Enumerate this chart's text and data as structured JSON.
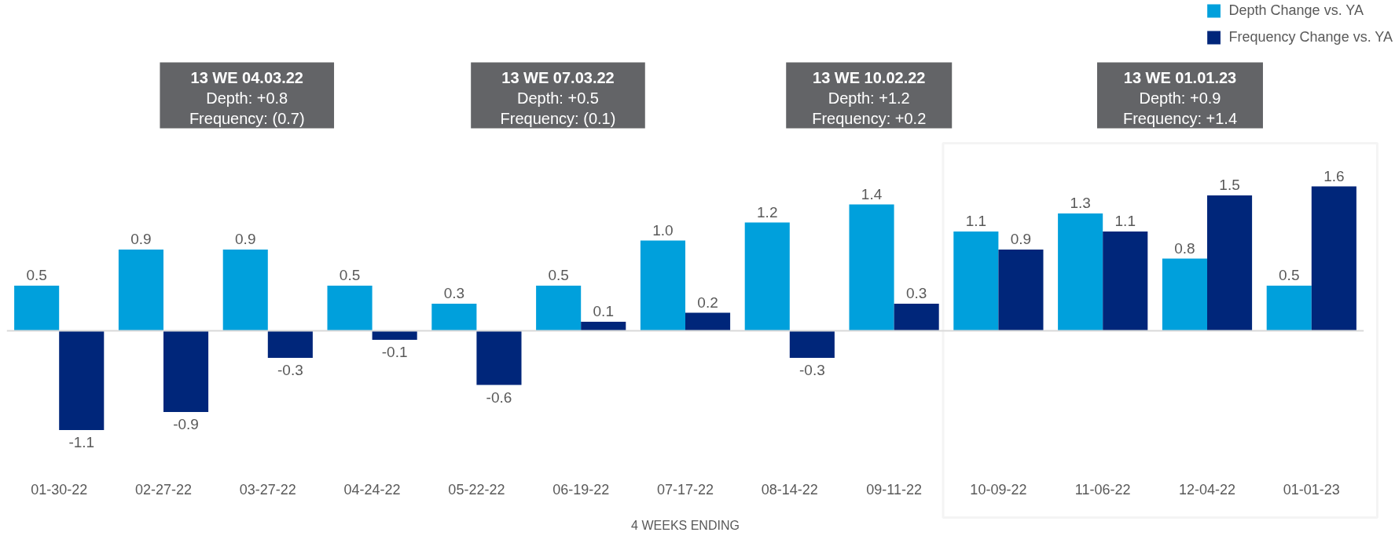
{
  "chart_data": {
    "type": "bar",
    "categories": [
      "01-30-22",
      "02-27-22",
      "03-27-22",
      "04-24-22",
      "05-22-22",
      "06-19-22",
      "07-17-22",
      "08-14-22",
      "09-11-22",
      "10-09-22",
      "11-06-22",
      "12-04-22",
      "01-01-23"
    ],
    "series": [
      {
        "name": "Depth Change vs. YA",
        "color": "#00a0dc",
        "values": [
          0.5,
          0.9,
          0.9,
          0.5,
          0.3,
          0.5,
          1.0,
          1.2,
          1.4,
          1.1,
          1.3,
          0.8,
          0.5
        ],
        "value_labels": [
          "0.5",
          "0.9",
          "0.9",
          "0.5",
          "0.3",
          "0.5",
          "1.0",
          "1.2",
          "1.4",
          "1.1",
          "1.3",
          "0.8",
          "0.5"
        ]
      },
      {
        "name": "Frequency Change vs. YA",
        "color": "#00267a",
        "values": [
          -1.1,
          -0.9,
          -0.3,
          -0.1,
          -0.6,
          0.1,
          0.2,
          -0.3,
          0.3,
          0.9,
          1.1,
          1.5,
          1.6
        ],
        "value_labels": [
          "-1.1",
          "-0.9",
          "-0.3",
          "-0.1",
          "-0.6",
          "0.1",
          "0.2",
          "-0.3",
          "0.3",
          "0.9",
          "1.1",
          "1.5",
          "1.6"
        ]
      }
    ],
    "xlabel": "4 WEEKS ENDING",
    "annotations": [
      "13 WE 04.03.22\nDepth: +0.8\nFrequency: (0.7)",
      "13 WE 07.03.22\nDepth: +0.5\nFrequency: (0.1)",
      "13 WE 10.02.22\nDepth: +1.2\nFrequency: +0.2",
      "13 WE 01.01.23\nDepth: +0.9\nFrequency: +1.4"
    ],
    "legend": "top right",
    "tick_labels": "x"
  }
}
